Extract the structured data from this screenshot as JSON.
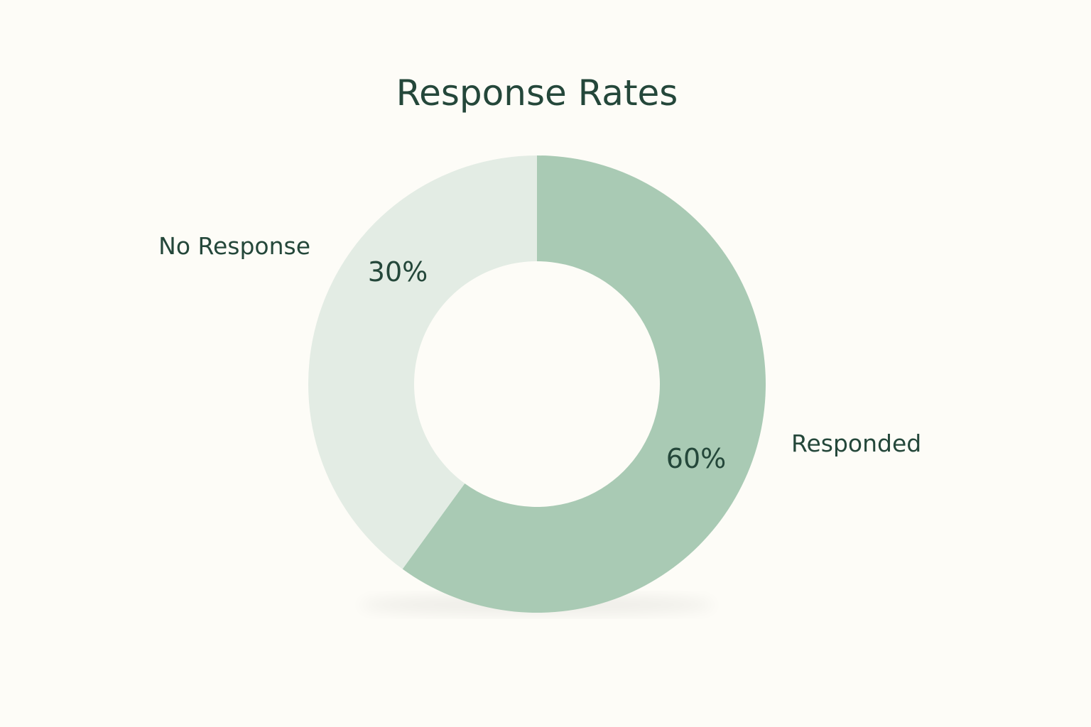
{
  "chart_data": {
    "type": "pie",
    "variant": "donut",
    "title": "Response Rates",
    "categories": [
      "Responded",
      "No Response"
    ],
    "values": [
      60,
      30
    ],
    "value_labels": [
      "60%",
      "30%"
    ],
    "colors": {
      "Responded": "#a9cab4",
      "No Response": "#e3ece4",
      "text": "#24473a",
      "background": "#fdfcf7"
    },
    "legend": "none"
  }
}
